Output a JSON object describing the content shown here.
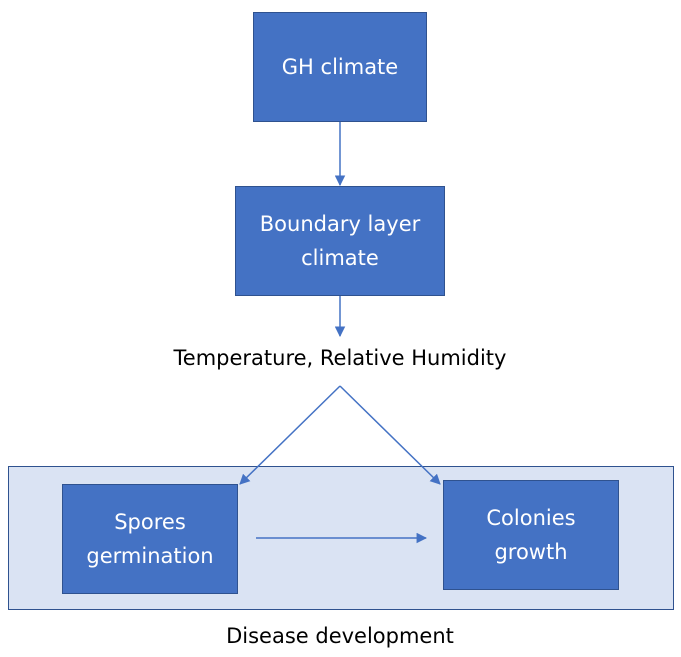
{
  "nodes": {
    "gh_climate": "GH climate",
    "boundary_layer": "Boundary layer\nclimate",
    "spores": "Spores\ngermination",
    "colonies": "Colonies\ngrowth"
  },
  "labels": {
    "conditions": "Temperature, Relative Humidity",
    "group_caption": "Disease development"
  },
  "colors": {
    "node_fill": "#4472c4",
    "node_border": "#2f528f",
    "group_fill": "#dae3f3",
    "arrow": "#4472c4"
  }
}
